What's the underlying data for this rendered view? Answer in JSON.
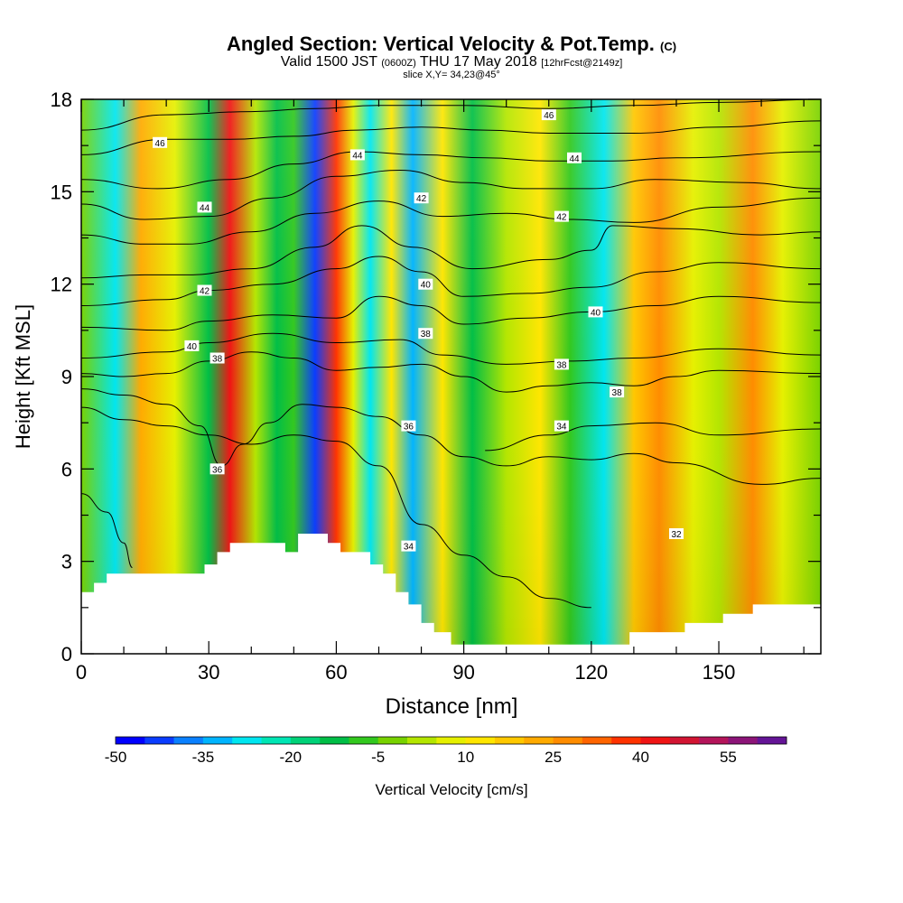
{
  "header": {
    "title": "Angled Section: Vertical Velocity & Pot.Temp.",
    "copyright": "(C)",
    "valid_label": "Valid 1500 JST",
    "utc": "(0600Z)",
    "date": "THU 17 May 2018",
    "forecast": "[12hrFcst@2149z]",
    "slice": "slice X,Y= 34,23@45°"
  },
  "colors": {
    "palette": [
      "#0000ff",
      "#0a3cff",
      "#0a80ff",
      "#00b4ff",
      "#00e6f0",
      "#00e6b4",
      "#00d278",
      "#00be46",
      "#32c81e",
      "#78d200",
      "#b4e600",
      "#e6f000",
      "#ffe600",
      "#ffc800",
      "#ffaa00",
      "#ff8c00",
      "#ff6400",
      "#ff3200",
      "#f01414",
      "#d21432",
      "#b4145a",
      "#8c1478",
      "#641496"
    ],
    "terrain": "#ffffff",
    "contour": "#000000"
  },
  "chart_data": {
    "type": "heatmap",
    "xlabel": "Distance [nm]",
    "ylabel": "Height [Kft MSL]",
    "xlim": [
      0,
      174
    ],
    "ylim": [
      0,
      18
    ],
    "xticks": [
      0,
      30,
      60,
      90,
      120,
      150
    ],
    "yticks": [
      0,
      3,
      6,
      9,
      12,
      15,
      18
    ],
    "colorbar": {
      "label": "Vertical Velocity [cm/s]",
      "min": -50,
      "max": 60,
      "step": 5,
      "tick_values": [
        -50,
        -35,
        -20,
        -5,
        10,
        25,
        40,
        55
      ]
    },
    "velocity_columns": [
      {
        "x": 0,
        "w": -2
      },
      {
        "x": 8,
        "w": -30
      },
      {
        "x": 14,
        "w": 22
      },
      {
        "x": 22,
        "w": 5
      },
      {
        "x": 30,
        "w": -12
      },
      {
        "x": 35,
        "w": 40
      },
      {
        "x": 41,
        "w": 3
      },
      {
        "x": 46,
        "w": -15
      },
      {
        "x": 50,
        "w": -8
      },
      {
        "x": 55,
        "w": -45
      },
      {
        "x": 60,
        "w": 38
      },
      {
        "x": 64,
        "w": 5
      },
      {
        "x": 68,
        "w": -28
      },
      {
        "x": 73,
        "w": 12
      },
      {
        "x": 78,
        "w": -35
      },
      {
        "x": 85,
        "w": 10
      },
      {
        "x": 92,
        "w": -12
      },
      {
        "x": 100,
        "w": 2
      },
      {
        "x": 108,
        "w": 12
      },
      {
        "x": 115,
        "w": -10
      },
      {
        "x": 123,
        "w": -30
      },
      {
        "x": 130,
        "w": 18
      },
      {
        "x": 136,
        "w": 25
      },
      {
        "x": 144,
        "w": 6
      },
      {
        "x": 150,
        "w": 2
      },
      {
        "x": 158,
        "w": 25
      },
      {
        "x": 165,
        "w": 8
      },
      {
        "x": 174,
        "w": -5
      }
    ],
    "terrain": [
      [
        0,
        2
      ],
      [
        0,
        2
      ],
      [
        3,
        2
      ],
      [
        3,
        2.3
      ],
      [
        6,
        2.3
      ],
      [
        6,
        2.6
      ],
      [
        29,
        2.6
      ],
      [
        29,
        2.9
      ],
      [
        32,
        2.9
      ],
      [
        32,
        3.3
      ],
      [
        35,
        3.3
      ],
      [
        35,
        3.6
      ],
      [
        48,
        3.6
      ],
      [
        48,
        3.3
      ],
      [
        51,
        3.3
      ],
      [
        51,
        3.9
      ],
      [
        58,
        3.9
      ],
      [
        58,
        3.6
      ],
      [
        61,
        3.6
      ],
      [
        61,
        3.3
      ],
      [
        68,
        3.3
      ],
      [
        68,
        2.9
      ],
      [
        71,
        2.9
      ],
      [
        71,
        2.6
      ],
      [
        74,
        2.6
      ],
      [
        74,
        2
      ],
      [
        77,
        2
      ],
      [
        77,
        1.6
      ],
      [
        80,
        1.6
      ],
      [
        80,
        1
      ],
      [
        83,
        1
      ],
      [
        83,
        0.7
      ],
      [
        87,
        0.7
      ],
      [
        87,
        0.3
      ],
      [
        129,
        0.3
      ],
      [
        129,
        0.7
      ],
      [
        142,
        0.7
      ],
      [
        142,
        1
      ],
      [
        151,
        1
      ],
      [
        151,
        1.3
      ],
      [
        158,
        1.3
      ],
      [
        158,
        1.6
      ],
      [
        174,
        1.6
      ]
    ],
    "isentropes": [
      {
        "value": 32,
        "points": [
          [
            0,
            5.2
          ],
          [
            6,
            4.6
          ],
          [
            10,
            3.6
          ],
          [
            12,
            2.8
          ]
        ]
      },
      {
        "value": 34,
        "points": [
          [
            0,
            8
          ],
          [
            10,
            7.6
          ],
          [
            20,
            7.4
          ],
          [
            30,
            7.1
          ],
          [
            40,
            6.8
          ],
          [
            50,
            7.1
          ],
          [
            60,
            6.9
          ],
          [
            70,
            6.1
          ],
          [
            80,
            4.2
          ],
          [
            90,
            3.2
          ],
          [
            100,
            2.5
          ],
          [
            110,
            1.8
          ],
          [
            120,
            1.5
          ]
        ]
      },
      {
        "value": 36,
        "points": [
          [
            0,
            8.6
          ],
          [
            10,
            8.4
          ],
          [
            20,
            8.1
          ],
          [
            28,
            7.4
          ],
          [
            33,
            6.1
          ],
          [
            38,
            6.8
          ],
          [
            44,
            7.5
          ],
          [
            52,
            8.1
          ],
          [
            60,
            8.0
          ],
          [
            70,
            7.7
          ],
          [
            80,
            7.1
          ],
          [
            90,
            6.4
          ],
          [
            100,
            6.1
          ],
          [
            110,
            6.4
          ],
          [
            120,
            6.3
          ],
          [
            130,
            6.5
          ],
          [
            140,
            6.2
          ],
          [
            160,
            5.5
          ],
          [
            174,
            5.7
          ]
        ]
      },
      {
        "value": 34,
        "points": [
          [
            95,
            6.6
          ],
          [
            110,
            7.1
          ],
          [
            120,
            7.4
          ],
          [
            135,
            7.5
          ],
          [
            150,
            7.1
          ],
          [
            174,
            7.3
          ]
        ]
      },
      {
        "value": 38,
        "points": [
          [
            0,
            9.1
          ],
          [
            10,
            9.0
          ],
          [
            20,
            9.1
          ],
          [
            30,
            9.5
          ],
          [
            40,
            9.8
          ],
          [
            50,
            9.6
          ],
          [
            60,
            9.2
          ],
          [
            70,
            9.3
          ],
          [
            80,
            9.4
          ],
          [
            90,
            9.0
          ],
          [
            100,
            8.5
          ],
          [
            110,
            8.7
          ],
          [
            120,
            8.8
          ],
          [
            130,
            8.7
          ],
          [
            140,
            9.0
          ],
          [
            150,
            9.2
          ],
          [
            174,
            9.1
          ]
        ]
      },
      {
        "value": 38,
        "points": [
          [
            0,
            9.6
          ],
          [
            20,
            9.8
          ],
          [
            30,
            10.1
          ],
          [
            45,
            10.4
          ],
          [
            60,
            10.1
          ],
          [
            75,
            10.2
          ],
          [
            85,
            9.7
          ],
          [
            100,
            9.4
          ],
          [
            115,
            9.5
          ],
          [
            130,
            9.6
          ],
          [
            150,
            9.9
          ],
          [
            174,
            9.7
          ]
        ]
      },
      {
        "value": 40,
        "points": [
          [
            0,
            10.6
          ],
          [
            20,
            10.5
          ],
          [
            30,
            10.8
          ],
          [
            45,
            11.0
          ],
          [
            60,
            10.9
          ],
          [
            70,
            11.6
          ],
          [
            80,
            11.3
          ],
          [
            90,
            10.7
          ],
          [
            105,
            10.9
          ],
          [
            120,
            11.1
          ],
          [
            135,
            11.3
          ],
          [
            150,
            11.6
          ],
          [
            174,
            11.4
          ]
        ]
      },
      {
        "value": 40,
        "points": [
          [
            0,
            11.3
          ],
          [
            20,
            11.5
          ],
          [
            30,
            11.8
          ],
          [
            45,
            12.0
          ],
          [
            60,
            12.5
          ],
          [
            70,
            12.9
          ],
          [
            80,
            12.4
          ],
          [
            90,
            11.6
          ],
          [
            105,
            11.7
          ],
          [
            120,
            11.9
          ],
          [
            135,
            12.4
          ],
          [
            150,
            12.7
          ],
          [
            174,
            12.5
          ]
        ]
      },
      {
        "value": 42,
        "points": [
          [
            0,
            12.2
          ],
          [
            15,
            12.3
          ],
          [
            25,
            12.3
          ],
          [
            40,
            12.5
          ],
          [
            55,
            13.2
          ],
          [
            66,
            13.9
          ],
          [
            78,
            13.2
          ],
          [
            92,
            12.5
          ],
          [
            110,
            12.8
          ],
          [
            120,
            13.1
          ],
          [
            125,
            13.9
          ],
          [
            140,
            13.8
          ],
          [
            160,
            13.6
          ],
          [
            174,
            13.7
          ]
        ]
      },
      {
        "value": 42,
        "points": [
          [
            0,
            13.6
          ],
          [
            15,
            13.3
          ],
          [
            25,
            13.3
          ],
          [
            40,
            13.7
          ],
          [
            55,
            14.3
          ],
          [
            70,
            14.7
          ],
          [
            85,
            14.2
          ],
          [
            100,
            14.3
          ],
          [
            115,
            14.1
          ],
          [
            130,
            14.0
          ],
          [
            150,
            14.5
          ],
          [
            174,
            14.8
          ]
        ]
      },
      {
        "value": 44,
        "points": [
          [
            0,
            14.6
          ],
          [
            15,
            14.1
          ],
          [
            30,
            14.2
          ],
          [
            45,
            14.8
          ],
          [
            60,
            15.5
          ],
          [
            75,
            15.7
          ],
          [
            90,
            15.3
          ],
          [
            105,
            15.1
          ],
          [
            120,
            15.1
          ],
          [
            135,
            15.4
          ],
          [
            155,
            15.3
          ],
          [
            174,
            15.1
          ]
        ]
      },
      {
        "value": 44,
        "points": [
          [
            0,
            15.4
          ],
          [
            18,
            15.1
          ],
          [
            35,
            15.4
          ],
          [
            50,
            15.9
          ],
          [
            65,
            16.3
          ],
          [
            80,
            16.2
          ],
          [
            95,
            16.1
          ],
          [
            110,
            16.0
          ],
          [
            125,
            16.0
          ],
          [
            140,
            16.1
          ],
          [
            174,
            16.3
          ]
        ]
      },
      {
        "value": 46,
        "points": [
          [
            0,
            16.2
          ],
          [
            20,
            16.7
          ],
          [
            35,
            16.7
          ],
          [
            50,
            16.8
          ],
          [
            65,
            17.0
          ],
          [
            80,
            17.1
          ],
          [
            95,
            17.0
          ],
          [
            110,
            16.9
          ],
          [
            130,
            16.9
          ],
          [
            150,
            17.1
          ],
          [
            174,
            17.3
          ]
        ]
      },
      {
        "value": 46,
        "points": [
          [
            0,
            17.0
          ],
          [
            20,
            17.5
          ],
          [
            40,
            17.6
          ],
          [
            55,
            17.7
          ],
          [
            70,
            17.8
          ],
          [
            90,
            17.8
          ],
          [
            110,
            17.7
          ],
          [
            130,
            17.8
          ],
          [
            150,
            17.9
          ],
          [
            174,
            18.0
          ]
        ]
      }
    ],
    "contour_labels": [
      {
        "x": 18.5,
        "y": 16.6,
        "text": "46"
      },
      {
        "x": 110,
        "y": 17.5,
        "text": "46"
      },
      {
        "x": 65,
        "y": 16.2,
        "text": "44"
      },
      {
        "x": 116,
        "y": 16.1,
        "text": "44"
      },
      {
        "x": 29,
        "y": 14.5,
        "text": "44"
      },
      {
        "x": 80,
        "y": 14.8,
        "text": "42"
      },
      {
        "x": 113,
        "y": 14.2,
        "text": "42"
      },
      {
        "x": 29,
        "y": 11.8,
        "text": "42"
      },
      {
        "x": 81,
        "y": 12.0,
        "text": "40"
      },
      {
        "x": 121,
        "y": 11.1,
        "text": "40"
      },
      {
        "x": 26,
        "y": 10.0,
        "text": "40"
      },
      {
        "x": 32,
        "y": 9.6,
        "text": "38"
      },
      {
        "x": 81,
        "y": 10.4,
        "text": "38"
      },
      {
        "x": 113,
        "y": 9.4,
        "text": "38"
      },
      {
        "x": 126,
        "y": 8.5,
        "text": "38"
      },
      {
        "x": 77,
        "y": 7.4,
        "text": "36"
      },
      {
        "x": 113,
        "y": 7.4,
        "text": "34"
      },
      {
        "x": 32,
        "y": 6.0,
        "text": "36"
      },
      {
        "x": 77,
        "y": 3.5,
        "text": "34"
      },
      {
        "x": 140,
        "y": 3.9,
        "text": "32"
      }
    ]
  }
}
